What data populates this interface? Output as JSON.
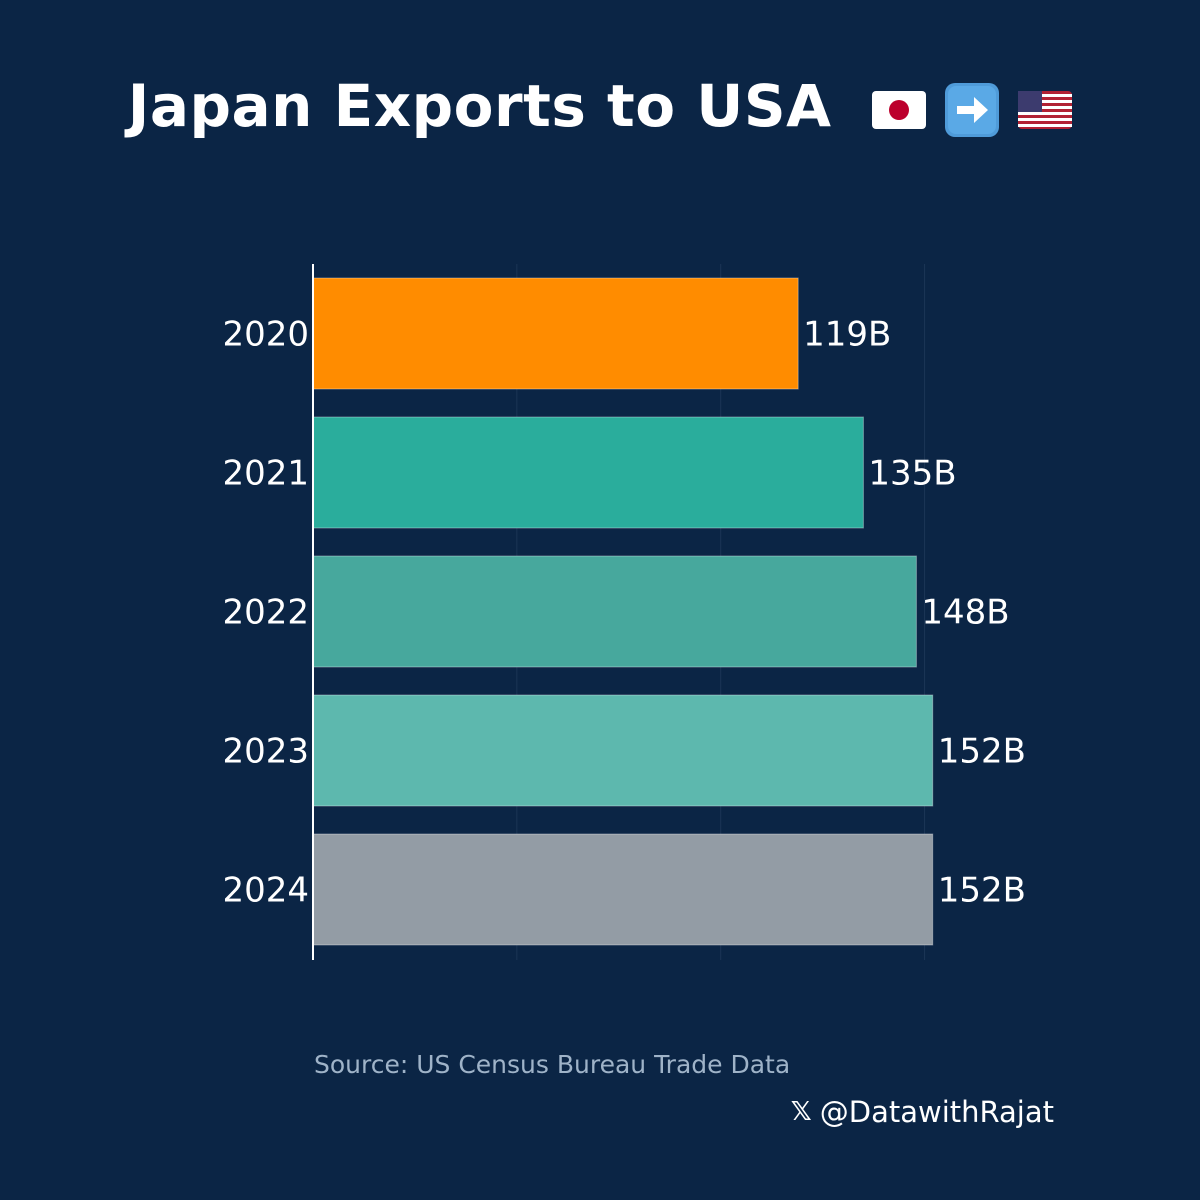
{
  "title": "Japan Exports to USA",
  "title_icons": [
    "japan-flag-icon",
    "right-arrow-icon",
    "us-flag-icon"
  ],
  "chart_data": {
    "type": "bar",
    "orientation": "horizontal",
    "title": "Japan Exports to USA",
    "categories": [
      "2020",
      "2021",
      "2022",
      "2023",
      "2024"
    ],
    "values": [
      119,
      135,
      148,
      152,
      152
    ],
    "value_labels": [
      "119B",
      "135B",
      "148B",
      "152B",
      "152B"
    ],
    "unit": "B",
    "colors": [
      "#ff8c00",
      "#2aad9c",
      "#47a89d",
      "#5db8ae",
      "#939ca5"
    ],
    "xlim": [
      0,
      200
    ],
    "xgrid_ticks": [
      50,
      100,
      150
    ],
    "grid": true,
    "xlabel": "",
    "ylabel": ""
  },
  "source": "Source: US Census Bureau Trade Data",
  "credit": {
    "icon": "x-logo-icon",
    "handle": "@DatawithRajat"
  },
  "colors": {
    "background": "#0b2545",
    "text": "#ffffff",
    "source_text": "#9fb3c8"
  }
}
